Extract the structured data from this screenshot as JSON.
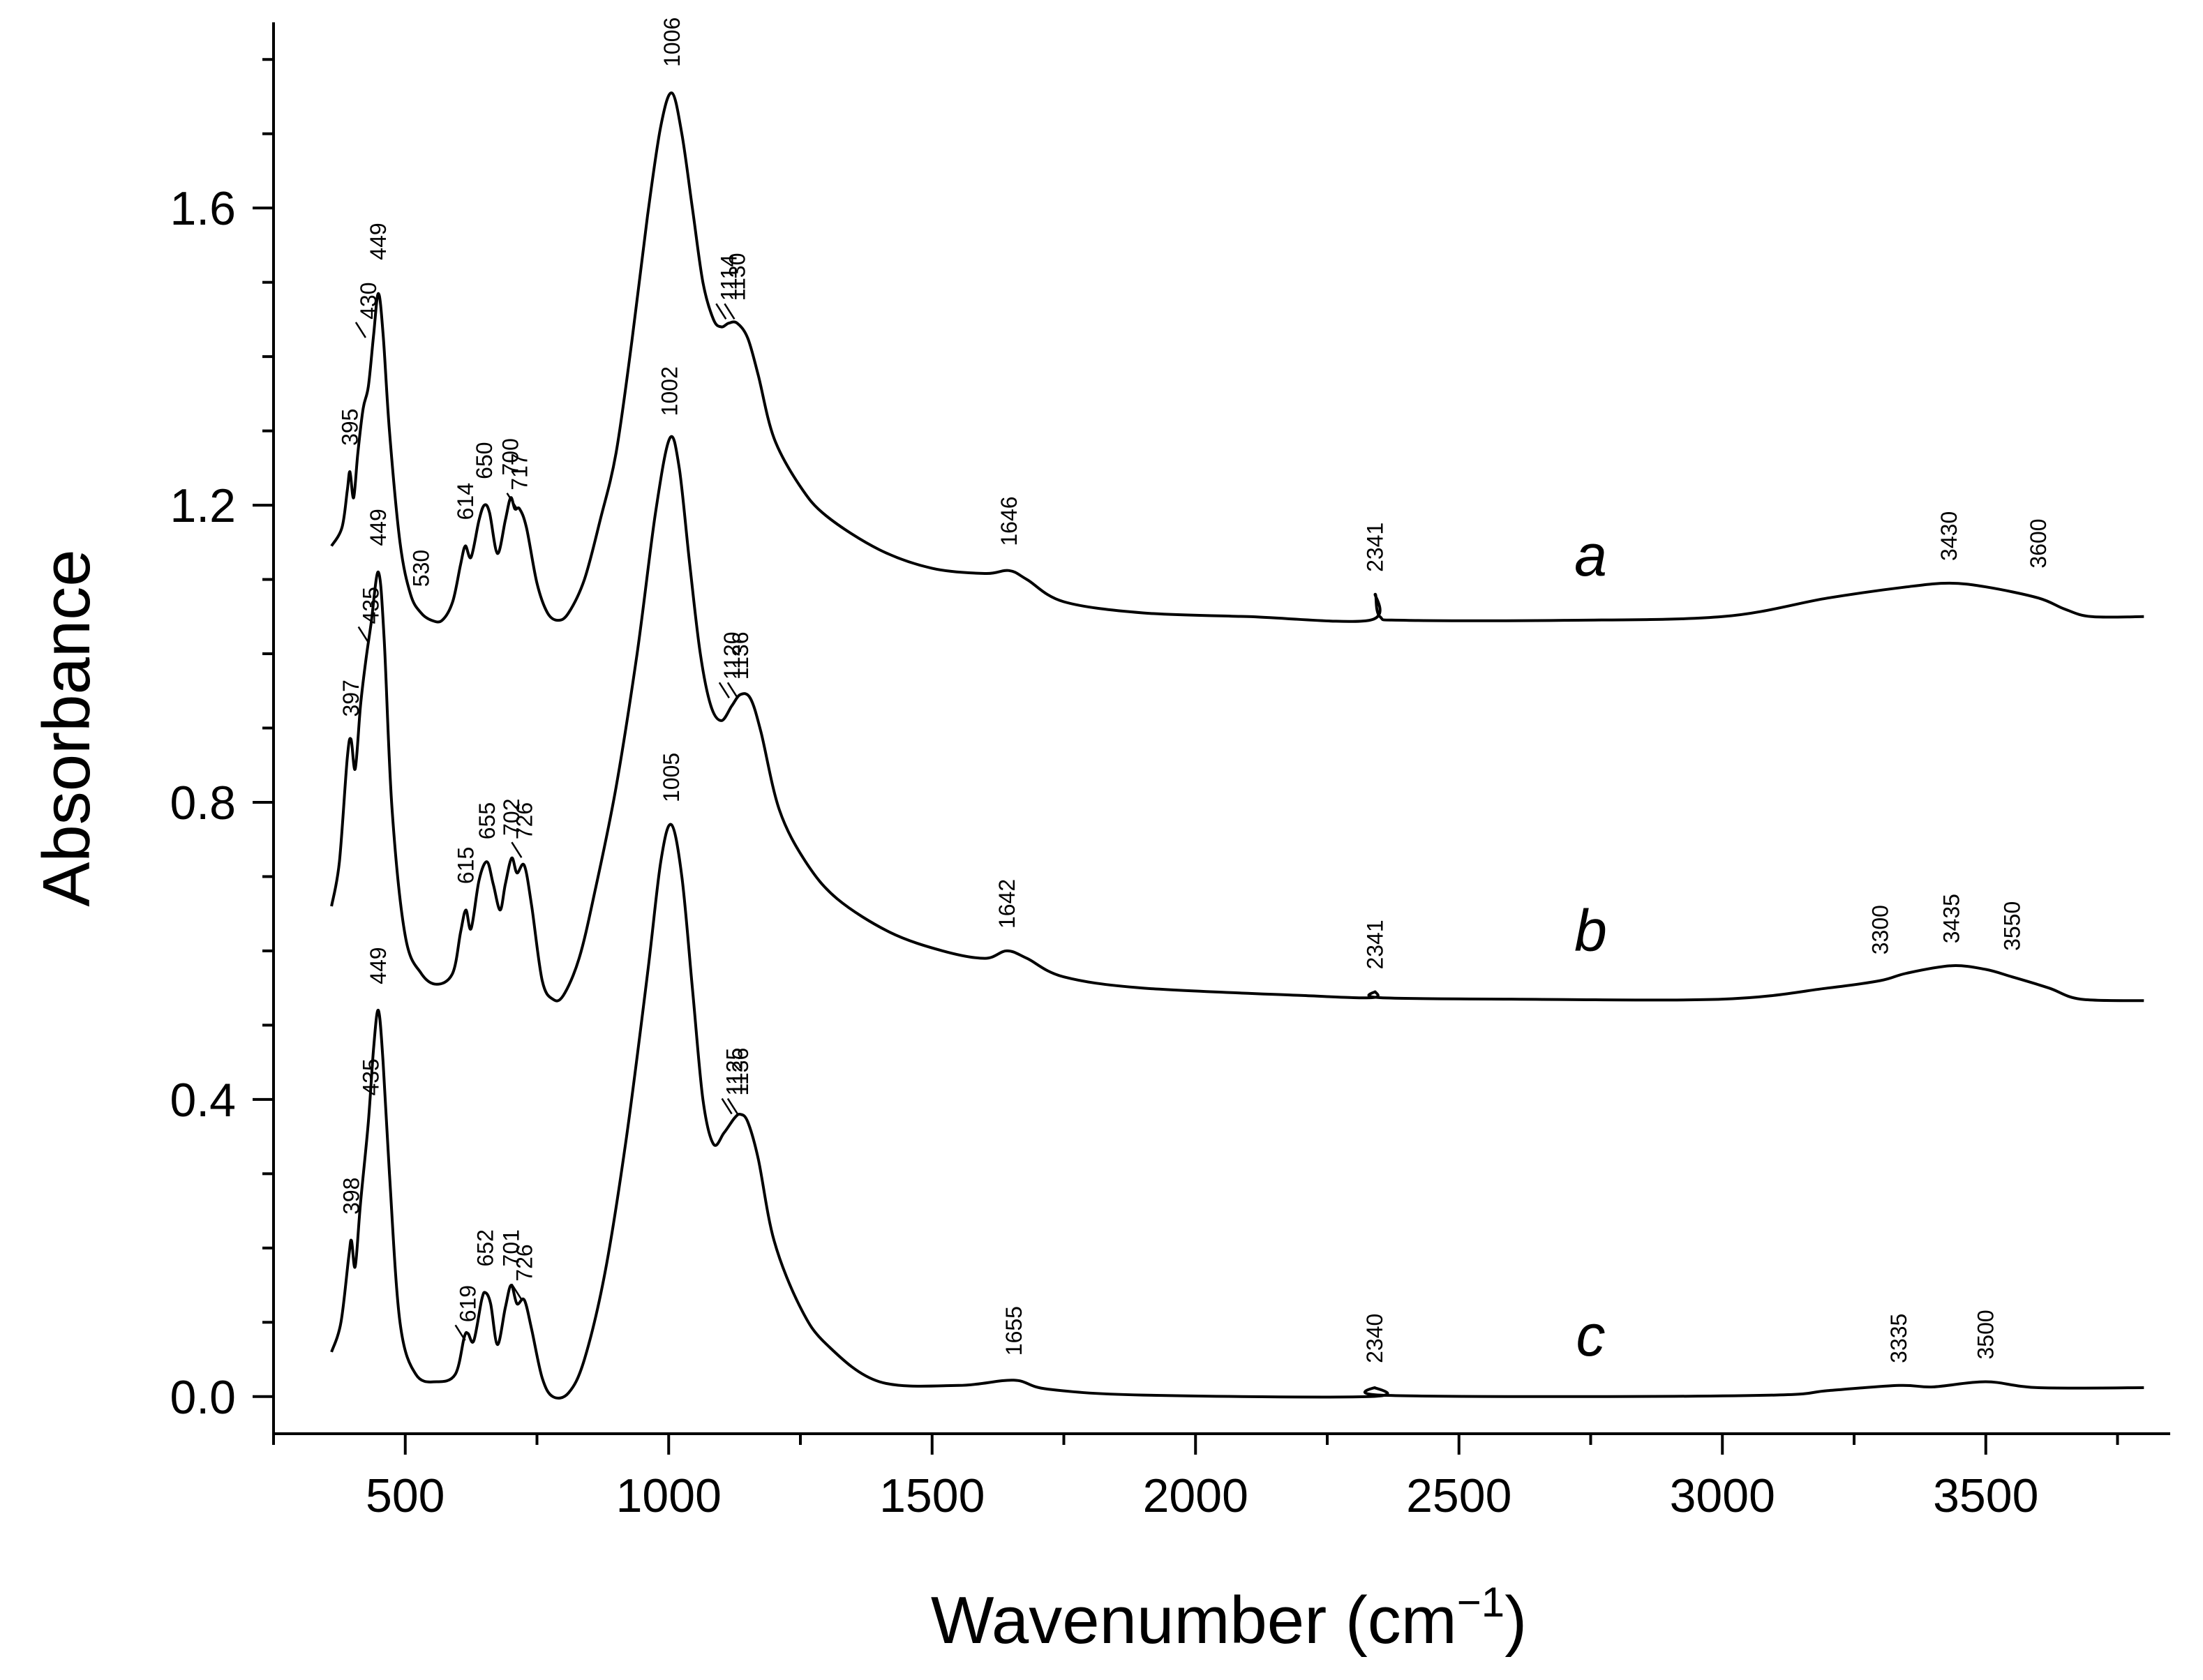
{
  "chart_data": {
    "type": "line",
    "title": "",
    "xlabel": "Wavenumber (cm",
    "xlabel_superscript": "−1",
    "xlabel_suffix": ")",
    "ylabel": "Absorbance",
    "xlim": [
      250,
      3850
    ],
    "ylim": [
      -0.05,
      1.85
    ],
    "x_ticks": [
      500,
      1000,
      1500,
      2000,
      2500,
      3000,
      3500
    ],
    "x_tick_labels": [
      "500",
      "1000",
      "1500",
      "2000",
      "2500",
      "3000",
      "3500"
    ],
    "y_ticks": [
      0.0,
      0.4,
      0.8,
      1.2,
      1.6
    ],
    "y_tick_labels": [
      "0.0",
      "0.4",
      "0.8",
      "1.2",
      "1.6"
    ],
    "grid": false,
    "series": [
      {
        "name": "a",
        "points": [
          [
            360,
            1.145
          ],
          [
            380,
            1.17
          ],
          [
            390,
            1.22
          ],
          [
            395,
            1.245
          ],
          [
            402,
            1.21
          ],
          [
            410,
            1.27
          ],
          [
            420,
            1.33
          ],
          [
            430,
            1.36
          ],
          [
            440,
            1.43
          ],
          [
            449,
            1.485
          ],
          [
            458,
            1.43
          ],
          [
            470,
            1.3
          ],
          [
            490,
            1.15
          ],
          [
            510,
            1.08
          ],
          [
            530,
            1.055
          ],
          [
            550,
            1.045
          ],
          [
            570,
            1.045
          ],
          [
            590,
            1.07
          ],
          [
            605,
            1.12
          ],
          [
            614,
            1.145
          ],
          [
            625,
            1.13
          ],
          [
            640,
            1.18
          ],
          [
            650,
            1.2
          ],
          [
            660,
            1.19
          ],
          [
            675,
            1.135
          ],
          [
            690,
            1.18
          ],
          [
            700,
            1.21
          ],
          [
            708,
            1.195
          ],
          [
            717,
            1.195
          ],
          [
            730,
            1.17
          ],
          [
            750,
            1.095
          ],
          [
            770,
            1.055
          ],
          [
            790,
            1.045
          ],
          [
            810,
            1.055
          ],
          [
            840,
            1.1
          ],
          [
            870,
            1.18
          ],
          [
            900,
            1.27
          ],
          [
            930,
            1.42
          ],
          [
            960,
            1.59
          ],
          [
            985,
            1.71
          ],
          [
            1006,
            1.755
          ],
          [
            1025,
            1.7
          ],
          [
            1045,
            1.6
          ],
          [
            1065,
            1.5
          ],
          [
            1085,
            1.45
          ],
          [
            1100,
            1.44
          ],
          [
            1114,
            1.445
          ],
          [
            1130,
            1.445
          ],
          [
            1150,
            1.425
          ],
          [
            1170,
            1.375
          ],
          [
            1200,
            1.29
          ],
          [
            1250,
            1.225
          ],
          [
            1300,
            1.185
          ],
          [
            1400,
            1.14
          ],
          [
            1500,
            1.115
          ],
          [
            1600,
            1.108
          ],
          [
            1646,
            1.112
          ],
          [
            1680,
            1.1
          ],
          [
            1750,
            1.07
          ],
          [
            1900,
            1.055
          ],
          [
            2100,
            1.05
          ],
          [
            2330,
            1.045
          ],
          [
            2341,
            1.08
          ],
          [
            2350,
            1.05
          ],
          [
            2400,
            1.045
          ],
          [
            2700,
            1.045
          ],
          [
            3000,
            1.05
          ],
          [
            3200,
            1.075
          ],
          [
            3350,
            1.09
          ],
          [
            3430,
            1.095
          ],
          [
            3500,
            1.09
          ],
          [
            3600,
            1.075
          ],
          [
            3650,
            1.06
          ],
          [
            3700,
            1.05
          ],
          [
            3800,
            1.05
          ]
        ]
      },
      {
        "name": "b",
        "points": [
          [
            360,
            0.66
          ],
          [
            375,
            0.72
          ],
          [
            390,
            0.86
          ],
          [
            397,
            0.885
          ],
          [
            405,
            0.845
          ],
          [
            415,
            0.93
          ],
          [
            425,
            0.99
          ],
          [
            435,
            1.04
          ],
          [
            449,
            1.11
          ],
          [
            460,
            1.02
          ],
          [
            475,
            0.79
          ],
          [
            500,
            0.62
          ],
          [
            530,
            0.57
          ],
          [
            560,
            0.555
          ],
          [
            590,
            0.57
          ],
          [
            605,
            0.625
          ],
          [
            615,
            0.655
          ],
          [
            625,
            0.63
          ],
          [
            640,
            0.695
          ],
          [
            655,
            0.72
          ],
          [
            667,
            0.69
          ],
          [
            680,
            0.655
          ],
          [
            690,
            0.69
          ],
          [
            702,
            0.725
          ],
          [
            712,
            0.705
          ],
          [
            726,
            0.715
          ],
          [
            740,
            0.66
          ],
          [
            760,
            0.56
          ],
          [
            780,
            0.535
          ],
          [
            800,
            0.54
          ],
          [
            830,
            0.59
          ],
          [
            860,
            0.68
          ],
          [
            900,
            0.82
          ],
          [
            940,
            1.0
          ],
          [
            975,
            1.19
          ],
          [
            1002,
            1.29
          ],
          [
            1020,
            1.25
          ],
          [
            1040,
            1.12
          ],
          [
            1060,
            1.0
          ],
          [
            1080,
            0.93
          ],
          [
            1100,
            0.91
          ],
          [
            1120,
            0.93
          ],
          [
            1136,
            0.945
          ],
          [
            1155,
            0.94
          ],
          [
            1175,
            0.895
          ],
          [
            1210,
            0.79
          ],
          [
            1260,
            0.72
          ],
          [
            1320,
            0.67
          ],
          [
            1420,
            0.625
          ],
          [
            1520,
            0.6
          ],
          [
            1600,
            0.59
          ],
          [
            1642,
            0.6
          ],
          [
            1680,
            0.59
          ],
          [
            1750,
            0.565
          ],
          [
            1900,
            0.55
          ],
          [
            2200,
            0.54
          ],
          [
            2335,
            0.537
          ],
          [
            2341,
            0.545
          ],
          [
            2350,
            0.537
          ],
          [
            2600,
            0.535
          ],
          [
            3000,
            0.535
          ],
          [
            3200,
            0.55
          ],
          [
            3300,
            0.56
          ],
          [
            3350,
            0.57
          ],
          [
            3435,
            0.58
          ],
          [
            3500,
            0.575
          ],
          [
            3550,
            0.565
          ],
          [
            3620,
            0.55
          ],
          [
            3680,
            0.535
          ],
          [
            3800,
            0.533
          ]
        ]
      },
      {
        "name": "c",
        "points": [
          [
            360,
            0.06
          ],
          [
            378,
            0.1
          ],
          [
            393,
            0.19
          ],
          [
            398,
            0.21
          ],
          [
            405,
            0.175
          ],
          [
            415,
            0.26
          ],
          [
            430,
            0.37
          ],
          [
            440,
            0.47
          ],
          [
            449,
            0.52
          ],
          [
            458,
            0.45
          ],
          [
            470,
            0.3
          ],
          [
            490,
            0.1
          ],
          [
            520,
            0.03
          ],
          [
            560,
            0.02
          ],
          [
            595,
            0.03
          ],
          [
            612,
            0.08
          ],
          [
            619,
            0.085
          ],
          [
            630,
            0.075
          ],
          [
            645,
            0.13
          ],
          [
            652,
            0.14
          ],
          [
            662,
            0.125
          ],
          [
            675,
            0.07
          ],
          [
            690,
            0.12
          ],
          [
            701,
            0.15
          ],
          [
            712,
            0.125
          ],
          [
            726,
            0.13
          ],
          [
            740,
            0.09
          ],
          [
            760,
            0.025
          ],
          [
            780,
            0.0
          ],
          [
            810,
            0.005
          ],
          [
            840,
            0.05
          ],
          [
            880,
            0.17
          ],
          [
            920,
            0.35
          ],
          [
            960,
            0.57
          ],
          [
            985,
            0.72
          ],
          [
            1005,
            0.77
          ],
          [
            1025,
            0.7
          ],
          [
            1045,
            0.55
          ],
          [
            1065,
            0.4
          ],
          [
            1085,
            0.34
          ],
          [
            1105,
            0.355
          ],
          [
            1125,
            0.375
          ],
          [
            1136,
            0.38
          ],
          [
            1150,
            0.37
          ],
          [
            1170,
            0.32
          ],
          [
            1200,
            0.21
          ],
          [
            1250,
            0.12
          ],
          [
            1300,
            0.07
          ],
          [
            1400,
            0.02
          ],
          [
            1550,
            0.015
          ],
          [
            1655,
            0.022
          ],
          [
            1720,
            0.01
          ],
          [
            1900,
            0.002
          ],
          [
            2330,
            0.0
          ],
          [
            2340,
            0.012
          ],
          [
            2350,
            0.002
          ],
          [
            2700,
            0.0
          ],
          [
            3100,
            0.002
          ],
          [
            3200,
            0.008
          ],
          [
            3335,
            0.015
          ],
          [
            3400,
            0.013
          ],
          [
            3500,
            0.02
          ],
          [
            3600,
            0.012
          ],
          [
            3800,
            0.012
          ]
        ]
      }
    ],
    "series_labels": [
      {
        "name": "a",
        "text": "a",
        "x": 2750,
        "y": 1.105
      },
      {
        "name": "b",
        "text": "b",
        "x": 2750,
        "y": 0.6
      },
      {
        "name": "c",
        "text": "c",
        "x": 2750,
        "y": 0.055
      }
    ],
    "peak_annotations": [
      {
        "series": "a",
        "text": "395",
        "x": 395,
        "y": 1.28
      },
      {
        "series": "a",
        "text": "430",
        "x": 430,
        "y": 1.45,
        "leader": true
      },
      {
        "series": "a",
        "text": "449",
        "x": 449,
        "y": 1.53
      },
      {
        "series": "a",
        "text": "530",
        "x": 530,
        "y": 1.09
      },
      {
        "series": "a",
        "text": "614",
        "x": 614,
        "y": 1.18
      },
      {
        "series": "a",
        "text": "650",
        "x": 650,
        "y": 1.235
      },
      {
        "series": "a",
        "text": "700",
        "x": 700,
        "y": 1.24
      },
      {
        "series": "a",
        "text": "717",
        "x": 717,
        "y": 1.22,
        "leader": true
      },
      {
        "series": "a",
        "text": "1006",
        "x": 1006,
        "y": 1.79
      },
      {
        "series": "a",
        "text": "1114",
        "x": 1114,
        "y": 1.475,
        "leader": true
      },
      {
        "series": "a",
        "text": "1130",
        "x": 1130,
        "y": 1.475,
        "leader": true
      },
      {
        "series": "a",
        "text": "1646",
        "x": 1646,
        "y": 1.145
      },
      {
        "series": "a",
        "text": "2341",
        "x": 2341,
        "y": 1.11
      },
      {
        "series": "a",
        "text": "3430",
        "x": 3430,
        "y": 1.125
      },
      {
        "series": "a",
        "text": "3600",
        "x": 3600,
        "y": 1.115
      },
      {
        "series": "b",
        "text": "397",
        "x": 397,
        "y": 0.915
      },
      {
        "series": "b",
        "text": "435",
        "x": 435,
        "y": 1.04,
        "leader": true
      },
      {
        "series": "b",
        "text": "449",
        "x": 449,
        "y": 1.145
      },
      {
        "series": "b",
        "text": "615",
        "x": 615,
        "y": 0.69
      },
      {
        "series": "b",
        "text": "655",
        "x": 655,
        "y": 0.75
      },
      {
        "series": "b",
        "text": "702",
        "x": 702,
        "y": 0.755
      },
      {
        "series": "b",
        "text": "726",
        "x": 726,
        "y": 0.75,
        "leader": true
      },
      {
        "series": "b",
        "text": "1002",
        "x": 1002,
        "y": 1.32
      },
      {
        "series": "b",
        "text": "1120",
        "x": 1120,
        "y": 0.965,
        "leader": true
      },
      {
        "series": "b",
        "text": "1136",
        "x": 1136,
        "y": 0.965,
        "leader": true
      },
      {
        "series": "b",
        "text": "1642",
        "x": 1642,
        "y": 0.63
      },
      {
        "series": "b",
        "text": "2341",
        "x": 2341,
        "y": 0.575
      },
      {
        "series": "b",
        "text": "3300",
        "x": 3300,
        "y": 0.595
      },
      {
        "series": "b",
        "text": "3435",
        "x": 3435,
        "y": 0.61
      },
      {
        "series": "b",
        "text": "3550",
        "x": 3550,
        "y": 0.6
      },
      {
        "series": "c",
        "text": "398",
        "x": 398,
        "y": 0.245
      },
      {
        "series": "c",
        "text": "435",
        "x": 435,
        "y": 0.405
      },
      {
        "series": "c",
        "text": "449",
        "x": 449,
        "y": 0.555
      },
      {
        "series": "c",
        "text": "619",
        "x": 619,
        "y": 0.1,
        "leader": true
      },
      {
        "series": "c",
        "text": "652",
        "x": 652,
        "y": 0.175
      },
      {
        "series": "c",
        "text": "701",
        "x": 701,
        "y": 0.175
      },
      {
        "series": "c",
        "text": "726",
        "x": 726,
        "y": 0.155,
        "leader": true
      },
      {
        "series": "c",
        "text": "1005",
        "x": 1005,
        "y": 0.8
      },
      {
        "series": "c",
        "text": "1125",
        "x": 1125,
        "y": 0.405,
        "leader": true
      },
      {
        "series": "c",
        "text": "1136",
        "x": 1136,
        "y": 0.405,
        "leader": true
      },
      {
        "series": "c",
        "text": "1655",
        "x": 1655,
        "y": 0.055
      },
      {
        "series": "c",
        "text": "2340",
        "x": 2340,
        "y": 0.045
      },
      {
        "series": "c",
        "text": "3335",
        "x": 3335,
        "y": 0.045
      },
      {
        "series": "c",
        "text": "3500",
        "x": 3500,
        "y": 0.05
      }
    ]
  }
}
